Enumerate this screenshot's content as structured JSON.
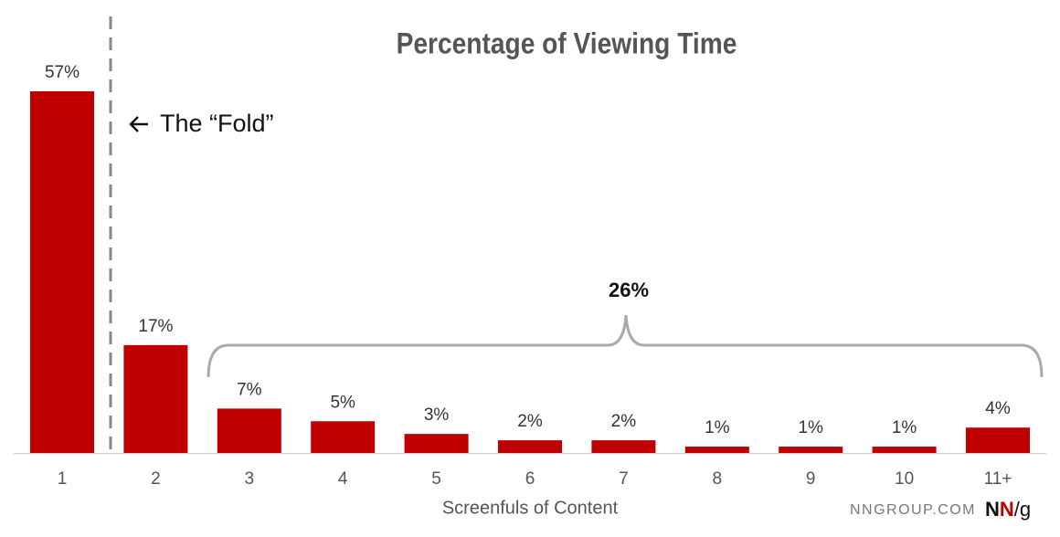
{
  "chart_data": {
    "type": "bar",
    "title": "Percentage of Viewing Time",
    "x_label": "Screenfuls of Content",
    "categories": [
      "1",
      "2",
      "3",
      "4",
      "5",
      "6",
      "7",
      "8",
      "9",
      "10",
      "11+"
    ],
    "values": [
      57,
      17,
      7,
      5,
      3,
      2,
      2,
      1,
      1,
      1,
      4
    ],
    "value_labels": [
      "57%",
      "17%",
      "7%",
      "5%",
      "3%",
      "2%",
      "2%",
      "1%",
      "1%",
      "1%",
      "4%"
    ],
    "color": "#c00000",
    "fold_label": "The “Fold”",
    "bracket_label": "26%",
    "source": "NNGROUP.COM",
    "logo_parts": [
      "N",
      "N",
      "/g"
    ]
  }
}
